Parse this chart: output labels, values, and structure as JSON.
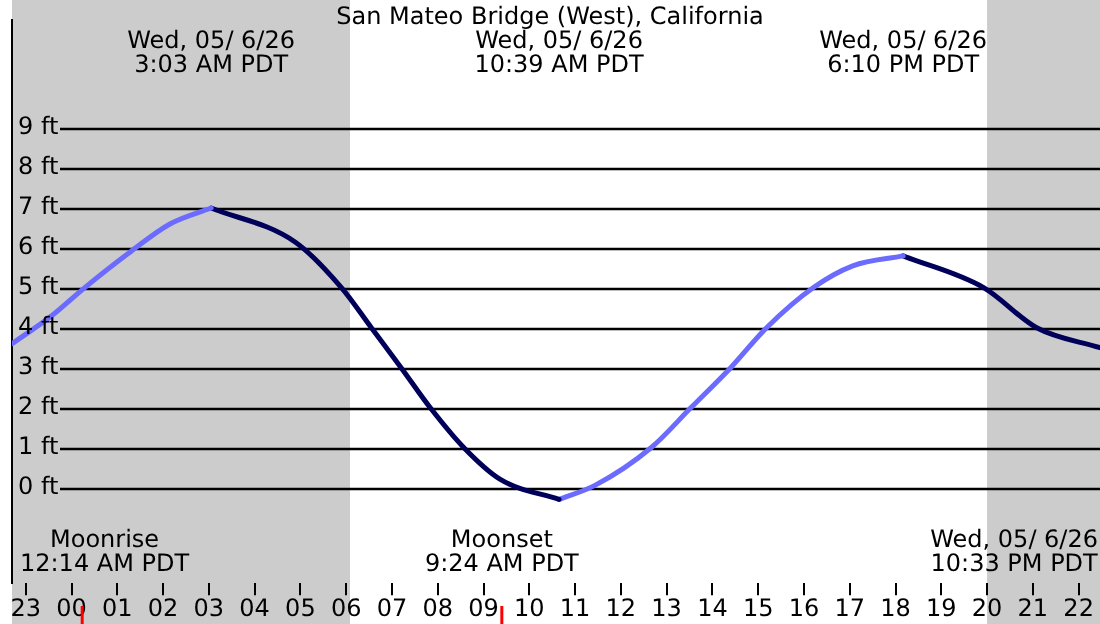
{
  "chart_data": {
    "type": "line",
    "title": "San Mateo Bridge (West), California",
    "series": [
      {
        "color": "#6b6bff",
        "x": [
          "--05-05T22:42",
          "--05-05T23:34",
          "--05-06T00:17",
          "--05-06T01:17",
          "--05-06T02:09",
          "--05-06T03:03"
        ],
        "values": [
          3.6,
          4.3,
          5.0,
          5.9,
          6.6,
          7.0
        ]
      },
      {
        "color": "#00005a",
        "x": [
          "--05-06T03:03",
          "--05-06T04:53",
          "--05-06T05:54",
          "--05-06T06:33",
          "--05-06T07:12",
          "--05-06T07:50",
          "--05-06T08:34",
          "--05-06T09:22",
          "--05-06T10:39"
        ],
        "values": [
          7.0,
          6.15,
          5.0,
          4.0,
          3.0,
          2.0,
          1.0,
          0.2,
          -0.3
        ]
      },
      {
        "color": "#6b6bff",
        "x": [
          "--05-06T10:39",
          "--05-06T11:26",
          "--05-06T12:40",
          "--05-06T13:32",
          "--05-06T14:24",
          "--05-06T15:11",
          "--05-06T16:12",
          "--05-06T17:04",
          "--05-06T18:10"
        ],
        "values": [
          -0.3,
          0.05,
          1.0,
          2.0,
          3.0,
          4.0,
          5.0,
          5.55,
          5.8
        ]
      },
      {
        "color": "#00005a",
        "x": [
          "--05-06T18:10",
          "--05-06T19:56",
          "--05-06T21:05",
          "--05-06T22:28"
        ],
        "values": [
          5.8,
          5.0,
          4.0,
          3.5
        ]
      }
    ],
    "xlim": [
      "--05-05T22:42",
      "--05-06T22:28"
    ],
    "xticks": [
      {
        "value": "--05-05T23:00",
        "label": "23"
      },
      {
        "value": "--05-06T00:00",
        "label": "00"
      },
      {
        "value": "--05-06T01:00",
        "label": "01"
      },
      {
        "value": "--05-06T02:00",
        "label": "02"
      },
      {
        "value": "--05-06T03:00",
        "label": "03"
      },
      {
        "value": "--05-06T04:00",
        "label": "04"
      },
      {
        "value": "--05-06T05:00",
        "label": "05"
      },
      {
        "value": "--05-06T06:00",
        "label": "06"
      },
      {
        "value": "--05-06T07:00",
        "label": "07"
      },
      {
        "value": "--05-06T08:00",
        "label": "08"
      },
      {
        "value": "--05-06T09:00",
        "label": "09"
      },
      {
        "value": "--05-06T10:00",
        "label": "10"
      },
      {
        "value": "--05-06T11:00",
        "label": "11"
      },
      {
        "value": "--05-06T12:00",
        "label": "12"
      },
      {
        "value": "--05-06T13:00",
        "label": "13"
      },
      {
        "value": "--05-06T14:00",
        "label": "14"
      },
      {
        "value": "--05-06T15:00",
        "label": "15"
      },
      {
        "value": "--05-06T16:00",
        "label": "16"
      },
      {
        "value": "--05-06T17:00",
        "label": "17"
      },
      {
        "value": "--05-06T18:00",
        "label": "18"
      },
      {
        "value": "--05-06T19:00",
        "label": "19"
      },
      {
        "value": "--05-06T20:00",
        "label": "20"
      },
      {
        "value": "--05-06T21:00",
        "label": "21"
      },
      {
        "value": "--05-06T22:00",
        "label": "22"
      }
    ],
    "ylim": [
      -2.4,
      11.7
    ],
    "yticks": [
      {
        "value": 0,
        "label": "0 ft"
      },
      {
        "value": 1,
        "label": "1 ft"
      },
      {
        "value": 2,
        "label": "2 ft"
      },
      {
        "value": 3,
        "label": "3 ft"
      },
      {
        "value": 4,
        "label": "4 ft"
      },
      {
        "value": 5,
        "label": "5 ft"
      },
      {
        "value": 6,
        "label": "6 ft"
      },
      {
        "value": 7,
        "label": "7 ft"
      },
      {
        "value": 8,
        "label": "8 ft"
      },
      {
        "value": 9,
        "label": "9 ft"
      }
    ],
    "grid": "y",
    "marker": "none",
    "line_style": "solid",
    "legend": false,
    "bands": [
      {
        "axis": "x",
        "from": "--05-05T22:42",
        "to": "--05-06T06:05",
        "color": "#cccccc"
      },
      {
        "axis": "x",
        "from": "--05-06T20:00",
        "to": "--05-06T22:28",
        "color": "#cccccc"
      }
    ],
    "ref_lines": [
      {
        "axis": "x",
        "value": "--05-06T00:14",
        "label": "Moonrise\n12:14 AM PDT",
        "color": "#ff0000"
      },
      {
        "axis": "x",
        "value": "--05-06T09:24",
        "label": "Moonset\n9:24 AM PDT",
        "color": "#ff0000"
      }
    ],
    "annotations": [
      "Wed, 05/ 6/26\n3:03 AM PDT",
      "Wed, 05/ 6/26\n10:39 AM PDT",
      "Wed, 05/ 6/26\n6:10 PM PDT",
      "Wed, 05/ 6/26\n10:33 PM PDT"
    ]
  }
}
